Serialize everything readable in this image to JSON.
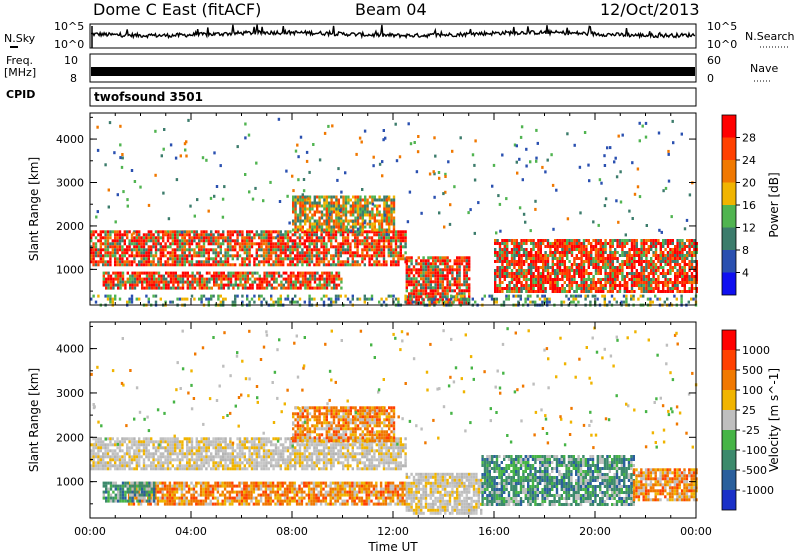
{
  "header": {
    "station": "Dome C East (fitACF)",
    "beam": "Beam 04",
    "date": "12/Oct/2013"
  },
  "top_panels": {
    "nsky_label": "N.Sky",
    "nsky_ticks": [
      "10^5",
      "10^0"
    ],
    "nsearch_label": "N.Search",
    "nsearch_ticks": [
      "10^5",
      "10^0"
    ],
    "freq_label": "Freq.",
    "freq_unit": "[MHz]",
    "freq_ticks": [
      "10",
      "8"
    ],
    "nave_label": "Nave",
    "nave_ticks": [
      "60",
      "0"
    ],
    "cpid_label": "CPID",
    "cpid_value": "twofsound 3501"
  },
  "chart_data": [
    {
      "type": "heatmap",
      "name": "power-panel",
      "xlabel": "",
      "ylabel": "Slant Range [km]",
      "x_range_hours": [
        0,
        24
      ],
      "ylim": [
        180,
        4600
      ],
      "yticks": [
        "1000",
        "2000",
        "3000",
        "4000"
      ],
      "colorbar": {
        "label": "Power [dB]",
        "ticks": [
          "4",
          "8",
          "12",
          "16",
          "20",
          "24",
          "28"
        ],
        "colors": [
          "#1010f0",
          "#2a50b0",
          "#3c7c6c",
          "#50b450",
          "#f0b400",
          "#f07800",
          "#ff4000",
          "#ff0000"
        ]
      },
      "echo_regions": [
        {
          "t0": 0.0,
          "t1": 12.5,
          "r0": 1100,
          "r1": 1900,
          "level": "strong"
        },
        {
          "t0": 0.5,
          "t1": 10.0,
          "r0": 550,
          "r1": 950,
          "level": "strong"
        },
        {
          "t0": 12.5,
          "t1": 15.0,
          "r0": 250,
          "r1": 1300,
          "level": "strong"
        },
        {
          "t0": 16.0,
          "t1": 24.0,
          "r0": 500,
          "r1": 1700,
          "level": "strong"
        },
        {
          "t0": 8.0,
          "t1": 12.0,
          "r0": 1900,
          "r1": 2700,
          "level": "medium"
        },
        {
          "t0": 0.0,
          "t1": 24.0,
          "r0": 200,
          "r1": 420,
          "level": "weak"
        }
      ]
    },
    {
      "type": "heatmap",
      "name": "velocity-panel",
      "xlabel": "Time UT",
      "ylabel": "Slant Range [km]",
      "x_range_hours": [
        0,
        24
      ],
      "ylim": [
        180,
        4600
      ],
      "xticks": [
        "00:00",
        "04:00",
        "08:00",
        "12:00",
        "16:00",
        "20:00",
        "00:00"
      ],
      "yticks": [
        "1000",
        "2000",
        "3000",
        "4000"
      ],
      "colorbar": {
        "label": "Velocity [m s^-1]",
        "ticks": [
          "1000",
          "500",
          "100",
          "25",
          "-25",
          "-100",
          "-500",
          "-1000"
        ],
        "colors": [
          "#1a30c8",
          "#2a5f9c",
          "#3c8a6c",
          "#46b446",
          "#bebebe",
          "#f0b400",
          "#f07800",
          "#ff4000",
          "#ff0000"
        ]
      },
      "echo_regions": [
        {
          "t0": 0.0,
          "t1": 12.5,
          "r0": 1300,
          "r1": 2000,
          "level": "ground"
        },
        {
          "t0": 1.5,
          "t1": 12.5,
          "r0": 500,
          "r1": 1000,
          "level": "negative"
        },
        {
          "t0": 0.5,
          "t1": 2.5,
          "r0": 550,
          "r1": 1000,
          "level": "positive"
        },
        {
          "t0": 12.5,
          "t1": 15.5,
          "r0": 300,
          "r1": 1200,
          "level": "ground"
        },
        {
          "t0": 15.5,
          "t1": 21.5,
          "r0": 500,
          "r1": 1600,
          "level": "positive"
        },
        {
          "t0": 21.5,
          "t1": 24.0,
          "r0": 600,
          "r1": 1300,
          "level": "negative"
        },
        {
          "t0": 8.0,
          "t1": 12.0,
          "r0": 1900,
          "r1": 2700,
          "level": "negative"
        }
      ]
    }
  ]
}
